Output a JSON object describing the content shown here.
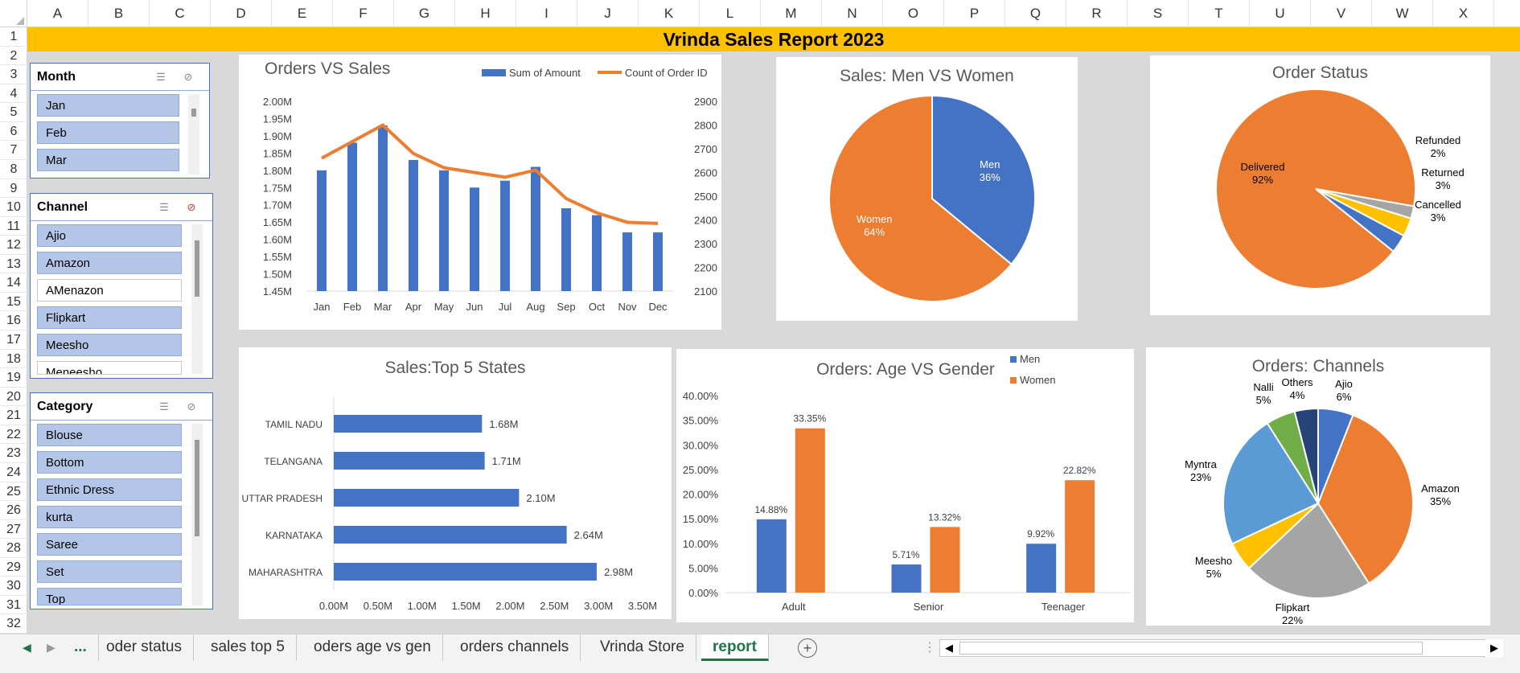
{
  "columns": [
    "A",
    "B",
    "C",
    "D",
    "E",
    "F",
    "G",
    "H",
    "I",
    "J",
    "K",
    "L",
    "M",
    "N",
    "O",
    "P",
    "Q",
    "R",
    "S",
    "T",
    "U",
    "V",
    "W",
    "X"
  ],
  "rows": [
    "1",
    "2",
    "3",
    "4",
    "5",
    "6",
    "7",
    "8",
    "9",
    "10",
    "11",
    "12",
    "13",
    "14",
    "15",
    "16",
    "17",
    "18",
    "19",
    "20",
    "21",
    "22",
    "23",
    "24",
    "25",
    "26",
    "27",
    "28",
    "29",
    "30",
    "31",
    "32"
  ],
  "report_title": "Vrinda Sales Report 2023",
  "slicers": {
    "month": {
      "title": "Month",
      "items": [
        {
          "label": "Jan",
          "selected": true
        },
        {
          "label": "Feb",
          "selected": true
        },
        {
          "label": "Mar",
          "selected": true
        }
      ]
    },
    "channel": {
      "title": "Channel",
      "items": [
        {
          "label": "Ajio",
          "selected": true
        },
        {
          "label": "Amazon",
          "selected": true
        },
        {
          "label": "AMenazon",
          "selected": false
        },
        {
          "label": "Flipkart",
          "selected": true
        },
        {
          "label": "Meesho",
          "selected": true
        },
        {
          "label": "Meneesho",
          "selected": false
        }
      ]
    },
    "category": {
      "title": "Category",
      "items": [
        {
          "label": "Blouse",
          "selected": true
        },
        {
          "label": "Bottom",
          "selected": true
        },
        {
          "label": "Ethnic Dress",
          "selected": true
        },
        {
          "label": "kurta",
          "selected": true
        },
        {
          "label": "Saree",
          "selected": true
        },
        {
          "label": "Set",
          "selected": true
        },
        {
          "label": "Top",
          "selected": true
        }
      ]
    }
  },
  "charts": {
    "orders_vs_sales": {
      "title": "Orders VS Sales",
      "legend": [
        "Sum of Amount",
        "Count of Order ID"
      ],
      "categories": [
        "Jan",
        "Feb",
        "Mar",
        "Apr",
        "May",
        "Jun",
        "Jul",
        "Aug",
        "Sep",
        "Oct",
        "Nov",
        "Dec"
      ],
      "y_ticks": [
        "2.00M",
        "1.95M",
        "1.90M",
        "1.85M",
        "1.80M",
        "1.75M",
        "1.70M",
        "1.65M",
        "1.60M",
        "1.55M",
        "1.50M",
        "1.45M"
      ],
      "y2_ticks": [
        "2900",
        "2800",
        "2700",
        "2600",
        "2500",
        "2400",
        "2300",
        "2200",
        "2100"
      ]
    },
    "men_vs_women": {
      "title": "Sales: Men VS Women"
    },
    "order_status": {
      "title": "Order Status"
    },
    "top5_states": {
      "title": "Sales:Top 5 States",
      "x_ticks": [
        "0.00M",
        "0.50M",
        "1.00M",
        "1.50M",
        "2.00M",
        "2.50M",
        "3.00M",
        "3.50M"
      ]
    },
    "age_vs_gender": {
      "title": "Orders: Age VS Gender",
      "legend": [
        "Men",
        "Women"
      ],
      "y_ticks": [
        "40.00%",
        "35.00%",
        "30.00%",
        "25.00%",
        "20.00%",
        "15.00%",
        "10.00%",
        "5.00%",
        "0.00%"
      ]
    },
    "channels": {
      "title": "Orders: Channels"
    }
  },
  "chart_data": [
    {
      "type": "bar",
      "title": "Orders VS Sales",
      "categories": [
        "Jan",
        "Feb",
        "Mar",
        "Apr",
        "May",
        "Jun",
        "Jul",
        "Aug",
        "Sep",
        "Oct",
        "Nov",
        "Dec"
      ],
      "series": [
        {
          "name": "Sum of Amount",
          "kind": "bar",
          "axis": "left",
          "values": [
            1.8,
            1.88,
            1.93,
            1.83,
            1.8,
            1.75,
            1.77,
            1.81,
            1.69,
            1.67,
            1.62,
            1.62
          ]
        },
        {
          "name": "Count of Order ID",
          "kind": "line",
          "axis": "right",
          "values": [
            2660,
            2730,
            2800,
            2680,
            2620,
            2600,
            2580,
            2610,
            2490,
            2430,
            2390,
            2385
          ]
        }
      ],
      "ylim": [
        1.45,
        2.0
      ],
      "y2lim": [
        2100,
        2900
      ],
      "colors": [
        "#4472c4",
        "#ed7d31"
      ]
    },
    {
      "type": "pie",
      "title": "Sales: Men VS Women",
      "slices": [
        {
          "label": "Men",
          "value": 36,
          "pct": "36%",
          "color": "#4472c4"
        },
        {
          "label": "Women",
          "value": 64,
          "pct": "64%",
          "color": "#ed7d31"
        }
      ]
    },
    {
      "type": "pie",
      "title": "Order Status",
      "slices": [
        {
          "label": "Delivered",
          "value": 92,
          "pct": "92%",
          "color": "#ed7d31"
        },
        {
          "label": "Refunded",
          "value": 2,
          "pct": "2%",
          "color": "#a5a5a5"
        },
        {
          "label": "Returned",
          "value": 3,
          "pct": "3%",
          "color": "#ffc000"
        },
        {
          "label": "Cancelled",
          "value": 3,
          "pct": "3%",
          "color": "#4472c4"
        }
      ]
    },
    {
      "type": "bar",
      "orientation": "horizontal",
      "title": "Sales:Top 5 States",
      "categories": [
        "TAMIL NADU",
        "TELANGANA",
        "UTTAR PRADESH",
        "KARNATAKA",
        "MAHARASHTRA"
      ],
      "values": [
        1.68,
        1.71,
        2.1,
        2.64,
        2.98
      ],
      "labels": [
        "1.68M",
        "1.71M",
        "2.10M",
        "2.64M",
        "2.98M"
      ],
      "xlim": [
        0,
        3.5
      ],
      "colors": [
        "#4472c4"
      ]
    },
    {
      "type": "bar",
      "title": "Orders: Age VS Gender",
      "categories": [
        "Adult",
        "Senior",
        "Teenager"
      ],
      "series": [
        {
          "name": "Men",
          "values": [
            14.88,
            5.71,
            9.92
          ],
          "labels": [
            "14.88%",
            "5.71%",
            "9.92%"
          ]
        },
        {
          "name": "Women",
          "values": [
            33.35,
            13.32,
            22.82
          ],
          "labels": [
            "33.35%",
            "13.32%",
            "22.82%"
          ]
        }
      ],
      "ylim": [
        0,
        40
      ],
      "colors": [
        "#4472c4",
        "#ed7d31"
      ]
    },
    {
      "type": "pie",
      "title": "Orders: Channels",
      "slices": [
        {
          "label": "Ajio",
          "value": 6,
          "pct": "6%",
          "color": "#4472c4"
        },
        {
          "label": "Amazon",
          "value": 35,
          "pct": "35%",
          "color": "#ed7d31"
        },
        {
          "label": "Flipkart",
          "value": 22,
          "pct": "22%",
          "color": "#a5a5a5"
        },
        {
          "label": "Meesho",
          "value": 5,
          "pct": "5%",
          "color": "#ffc000"
        },
        {
          "label": "Myntra",
          "value": 23,
          "pct": "23%",
          "color": "#5b9bd5"
        },
        {
          "label": "Nalli",
          "value": 5,
          "pct": "5%",
          "color": "#70ad47"
        },
        {
          "label": "Others",
          "value": 4,
          "pct": "4%",
          "color": "#264478"
        }
      ]
    }
  ],
  "sheet_tabs": {
    "more": "...",
    "items": [
      "oder status",
      "sales top 5",
      "oders age vs gen",
      "orders channels",
      "Vrinda Store",
      "report"
    ],
    "active": "report",
    "add_icon": "plus-circle-icon"
  }
}
